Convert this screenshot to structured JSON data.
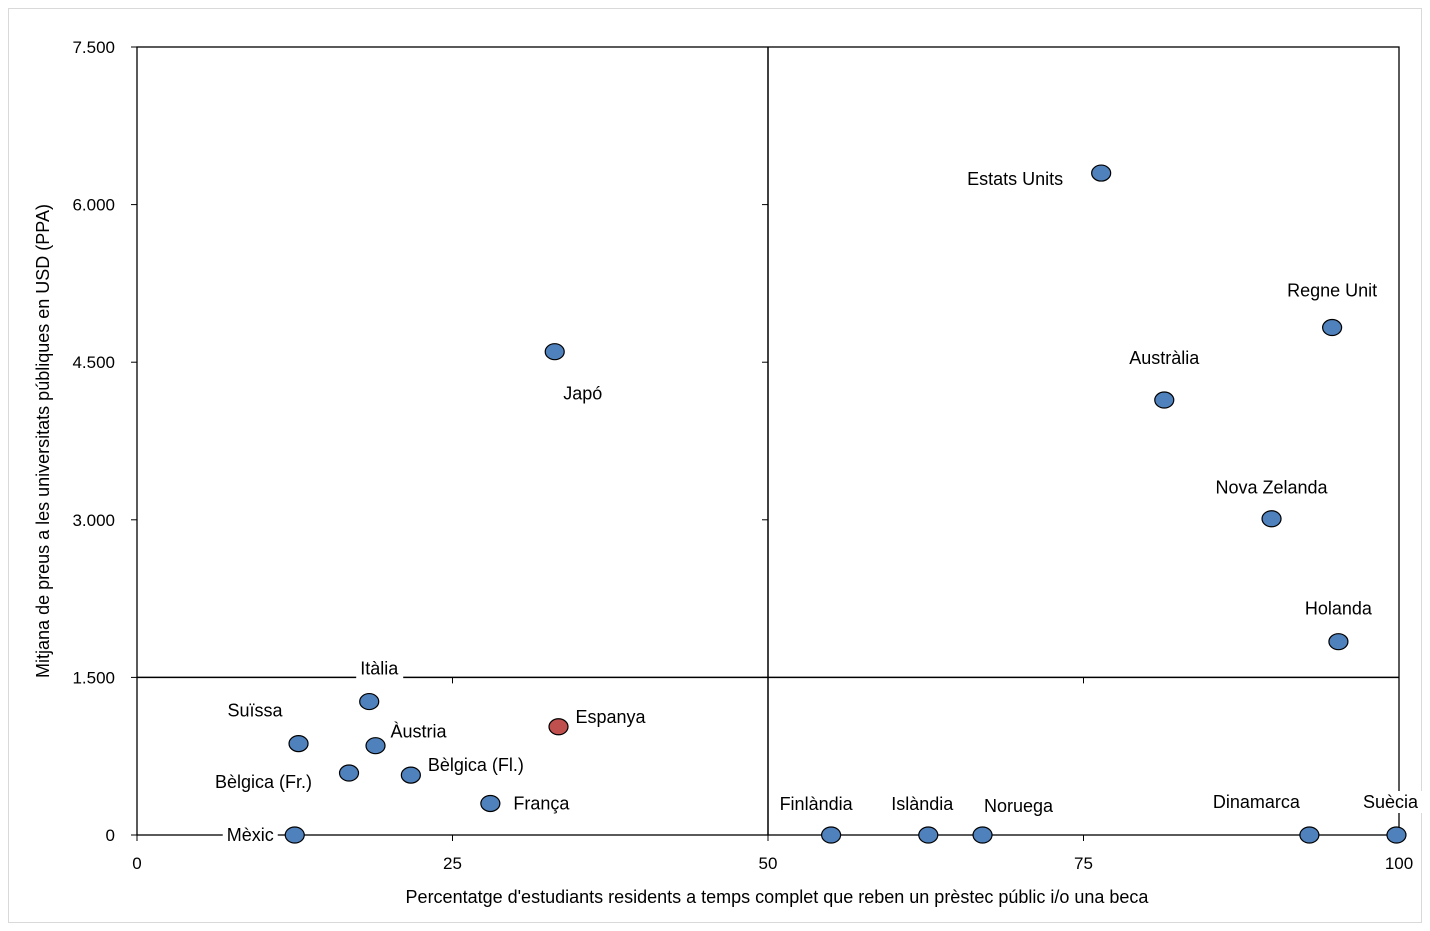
{
  "colors": {
    "point_default": "#4f81bd",
    "point_highlight": "#c0504d",
    "point_stroke": "#000000",
    "axis": "#000000",
    "frame": "#d9d9d9"
  },
  "chart_data": {
    "type": "scatter",
    "title": "",
    "xlabel": "Percentatge d'estudiants residents a temps complet que reben un prèstec públic i/o una beca",
    "ylabel": "Mitjana de preus a les universitats públiques en USD (PPA)",
    "xlim": [
      0,
      100
    ],
    "ylim": [
      0,
      7500
    ],
    "x_ticks": [
      0,
      25,
      50,
      75,
      100
    ],
    "x_tick_labels": [
      "0",
      "25",
      "50",
      "75",
      "100"
    ],
    "y_ticks": [
      0,
      1500,
      3000,
      4500,
      6000,
      7500
    ],
    "y_tick_labels": [
      "0",
      "1.500",
      "3.000",
      "4.500",
      "6.000",
      "7.500"
    ],
    "reference_lines": {
      "x": 50,
      "y": 1500
    },
    "grid": false,
    "legend": "none",
    "points": [
      {
        "label": "Estats Units",
        "x": 76.4,
        "y": 6300,
        "highlight": false,
        "label_anchor": "end",
        "label_dx": -38,
        "label_dy": 12
      },
      {
        "label": "Regne Unit",
        "x": 94.7,
        "y": 4830,
        "highlight": false,
        "label_anchor": "middle",
        "label_dx": 0,
        "label_dy": -31
      },
      {
        "label": "Austràlia",
        "x": 81.4,
        "y": 4140,
        "highlight": false,
        "label_anchor": "middle",
        "label_dx": 0,
        "label_dy": -36
      },
      {
        "label": "Nova Zelanda",
        "x": 89.9,
        "y": 3010,
        "highlight": false,
        "label_anchor": "middle",
        "label_dx": 0,
        "label_dy": -25
      },
      {
        "label": "Holanda",
        "x": 95.2,
        "y": 1840,
        "highlight": false,
        "label_anchor": "middle",
        "label_dx": 0,
        "label_dy": -27
      },
      {
        "label": "Japó",
        "x": 33.1,
        "y": 4600,
        "highlight": false,
        "label_anchor": "middle",
        "label_dx": 28,
        "label_dy": 48
      },
      {
        "label": "Itàlia",
        "x": 18.4,
        "y": 1270,
        "highlight": false,
        "label_anchor": "middle",
        "label_dx": 10,
        "label_dy": -27
      },
      {
        "label": "Suïssa",
        "x": 12.8,
        "y": 870,
        "highlight": false,
        "label_anchor": "end",
        "label_dx": -16,
        "label_dy": -27
      },
      {
        "label": "Àustria",
        "x": 18.9,
        "y": 850,
        "highlight": false,
        "label_anchor": "start",
        "label_dx": 15,
        "label_dy": -8
      },
      {
        "label": "Espanya",
        "x": 33.4,
        "y": 1030,
        "highlight": true,
        "label_anchor": "start",
        "label_dx": 17,
        "label_dy": -4
      },
      {
        "label": "Bèlgica (Fr.)",
        "x": 16.8,
        "y": 590,
        "highlight": false,
        "label_anchor": "end",
        "label_dx": -37,
        "label_dy": 15
      },
      {
        "label": "Bèlgica (Fl.)",
        "x": 21.7,
        "y": 570,
        "highlight": false,
        "label_anchor": "start",
        "label_dx": 17,
        "label_dy": -4
      },
      {
        "label": "França",
        "x": 28.0,
        "y": 300,
        "highlight": false,
        "label_anchor": "start",
        "label_dx": 23,
        "label_dy": 6
      },
      {
        "label": "Mèxic",
        "x": 12.5,
        "y": 0,
        "highlight": false,
        "label_anchor": "end",
        "label_dx": -21,
        "label_dy": 6
      },
      {
        "label": "Finlàndia",
        "x": 55.0,
        "y": 0,
        "highlight": false,
        "label_anchor": "middle",
        "label_dx": -15,
        "label_dy": -25
      },
      {
        "label": "Islàndia",
        "x": 62.7,
        "y": 0,
        "highlight": false,
        "label_anchor": "middle",
        "label_dx": -6,
        "label_dy": -25
      },
      {
        "label": "Noruega",
        "x": 67.0,
        "y": 0,
        "highlight": false,
        "label_anchor": "middle",
        "label_dx": 36,
        "label_dy": -23
      },
      {
        "label": "Dinamarca",
        "x": 92.9,
        "y": 0,
        "highlight": false,
        "label_anchor": "middle",
        "label_dx": -53,
        "label_dy": -27
      },
      {
        "label": "Suècia",
        "x": 99.8,
        "y": 0,
        "highlight": false,
        "label_anchor": "middle",
        "label_dx": -6,
        "label_dy": -27
      }
    ]
  }
}
